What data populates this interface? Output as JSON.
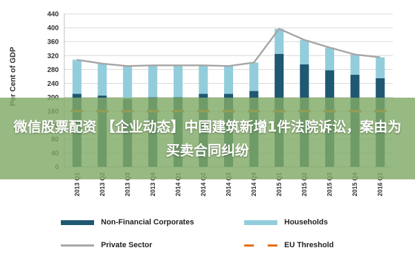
{
  "chart_data": {
    "type": "bar",
    "stacked": true,
    "ylabel": "Per Cent of GDP",
    "ylim": [
      0,
      440
    ],
    "yticks": [
      0,
      40,
      80,
      120,
      160,
      200,
      240,
      280,
      320,
      360,
      400,
      440
    ],
    "grid": true,
    "categories": [
      "2013 Q1",
      "2013 Q2",
      "2013 Q3",
      "2013 Q4",
      "2014 Q1",
      "2014 Q2",
      "2014 Q3",
      "2014 Q4",
      "2015 Q1",
      "2015 Q2",
      "2015 Q3",
      "2015 Q4",
      "2016 Q1"
    ],
    "series": [
      {
        "name": "Non-Financial Corporates",
        "kind": "bar",
        "color": "#1f5872",
        "values": [
          210,
          205,
          195,
          200,
          200,
          210,
          210,
          218,
          325,
          295,
          278,
          265,
          255
        ]
      },
      {
        "name": "Households",
        "kind": "bar",
        "color": "#92cddc",
        "values": [
          98,
          92,
          95,
          92,
          92,
          82,
          80,
          82,
          72,
          70,
          65,
          58,
          60
        ]
      },
      {
        "name": "Private Sector",
        "kind": "line",
        "color": "#a6a6a6",
        "values": [
          308,
          297,
          290,
          292,
          292,
          292,
          290,
          300,
          397,
          365,
          343,
          323,
          315
        ]
      },
      {
        "name": "EU Threshold",
        "kind": "dash",
        "color": "#e46c0a",
        "values": [
          160,
          160,
          160,
          160,
          160,
          160,
          160,
          160,
          160,
          160,
          160,
          160,
          160
        ]
      }
    ],
    "legend_position": "bottom"
  },
  "banner": {
    "text": "微信股票配资 【企业动态】中国建筑新增1件法院诉讼，案由为买卖合同纠纷"
  }
}
